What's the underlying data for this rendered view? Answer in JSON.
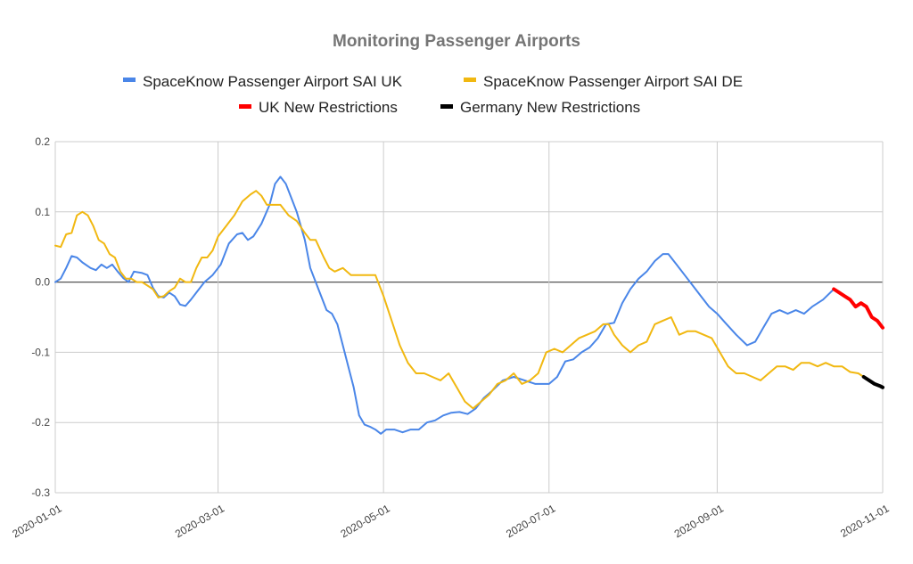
{
  "chart_data": {
    "type": "line",
    "title": "Monitoring Passenger Airports",
    "xlabel": "",
    "ylabel": "",
    "x_range": [
      "2020-01-01",
      "2020-11-01"
    ],
    "ylim": [
      -0.3,
      0.2
    ],
    "y_ticks": [
      "0.2",
      "0.1",
      "0.0",
      "-0.1",
      "-0.2",
      "-0.3"
    ],
    "x_ticks": [
      "2020-01-01",
      "2020-03-01",
      "2020-05-01",
      "2020-07-01",
      "2020-09-01",
      "2020-11-01"
    ],
    "grid": true,
    "legend_position": "top",
    "series": [
      {
        "name": "SpaceKnow Passenger Airport SAI UK",
        "color": "#4a86e8",
        "points": [
          [
            "2020-01-01",
            0.0
          ],
          [
            "2020-01-03",
            0.005
          ],
          [
            "2020-01-05",
            0.02
          ],
          [
            "2020-01-07",
            0.037
          ],
          [
            "2020-01-09",
            0.035
          ],
          [
            "2020-01-11",
            0.028
          ],
          [
            "2020-01-14",
            0.02
          ],
          [
            "2020-01-16",
            0.017
          ],
          [
            "2020-01-18",
            0.025
          ],
          [
            "2020-01-20",
            0.02
          ],
          [
            "2020-01-22",
            0.025
          ],
          [
            "2020-01-24",
            0.015
          ],
          [
            "2020-01-26",
            0.006
          ],
          [
            "2020-01-28",
            0.0
          ],
          [
            "2020-01-30",
            0.015
          ],
          [
            "2020-02-02",
            0.013
          ],
          [
            "2020-02-04",
            0.01
          ],
          [
            "2020-02-06",
            -0.008
          ],
          [
            "2020-02-08",
            -0.02
          ],
          [
            "2020-02-10",
            -0.022
          ],
          [
            "2020-02-12",
            -0.015
          ],
          [
            "2020-02-14",
            -0.02
          ],
          [
            "2020-02-16",
            -0.032
          ],
          [
            "2020-02-18",
            -0.034
          ],
          [
            "2020-02-20",
            -0.025
          ],
          [
            "2020-02-22",
            -0.015
          ],
          [
            "2020-02-25",
            0.0
          ],
          [
            "2020-02-28",
            0.01
          ],
          [
            "2020-03-02",
            0.025
          ],
          [
            "2020-03-05",
            0.055
          ],
          [
            "2020-03-08",
            0.068
          ],
          [
            "2020-03-10",
            0.07
          ],
          [
            "2020-03-12",
            0.06
          ],
          [
            "2020-03-14",
            0.065
          ],
          [
            "2020-03-17",
            0.083
          ],
          [
            "2020-03-20",
            0.11
          ],
          [
            "2020-03-22",
            0.14
          ],
          [
            "2020-03-24",
            0.15
          ],
          [
            "2020-03-26",
            0.14
          ],
          [
            "2020-03-28",
            0.12
          ],
          [
            "2020-03-30",
            0.1
          ],
          [
            "2020-04-02",
            0.06
          ],
          [
            "2020-04-04",
            0.02
          ],
          [
            "2020-04-06",
            0.0
          ],
          [
            "2020-04-08",
            -0.02
          ],
          [
            "2020-04-10",
            -0.04
          ],
          [
            "2020-04-12",
            -0.045
          ],
          [
            "2020-04-14",
            -0.06
          ],
          [
            "2020-04-16",
            -0.09
          ],
          [
            "2020-04-18",
            -0.12
          ],
          [
            "2020-04-20",
            -0.15
          ],
          [
            "2020-04-22",
            -0.19
          ],
          [
            "2020-04-24",
            -0.203
          ],
          [
            "2020-04-26",
            -0.206
          ],
          [
            "2020-04-28",
            -0.21
          ],
          [
            "2020-04-30",
            -0.216
          ],
          [
            "2020-05-02",
            -0.21
          ],
          [
            "2020-05-05",
            -0.21
          ],
          [
            "2020-05-08",
            -0.214
          ],
          [
            "2020-05-11",
            -0.21
          ],
          [
            "2020-05-14",
            -0.21
          ],
          [
            "2020-05-17",
            -0.2
          ],
          [
            "2020-05-20",
            -0.197
          ],
          [
            "2020-05-23",
            -0.19
          ],
          [
            "2020-05-26",
            -0.186
          ],
          [
            "2020-05-29",
            -0.185
          ],
          [
            "2020-06-01",
            -0.188
          ],
          [
            "2020-06-04",
            -0.18
          ],
          [
            "2020-06-07",
            -0.165
          ],
          [
            "2020-06-10",
            -0.155
          ],
          [
            "2020-06-14",
            -0.14
          ],
          [
            "2020-06-18",
            -0.135
          ],
          [
            "2020-06-22",
            -0.14
          ],
          [
            "2020-06-26",
            -0.145
          ],
          [
            "2020-07-01",
            -0.145
          ],
          [
            "2020-07-04",
            -0.135
          ],
          [
            "2020-07-07",
            -0.113
          ],
          [
            "2020-07-10",
            -0.11
          ],
          [
            "2020-07-13",
            -0.1
          ],
          [
            "2020-07-16",
            -0.093
          ],
          [
            "2020-07-19",
            -0.08
          ],
          [
            "2020-07-22",
            -0.06
          ],
          [
            "2020-07-25",
            -0.058
          ],
          [
            "2020-07-28",
            -0.03
          ],
          [
            "2020-07-31",
            -0.01
          ],
          [
            "2020-08-03",
            0.005
          ],
          [
            "2020-08-06",
            0.015
          ],
          [
            "2020-08-09",
            0.03
          ],
          [
            "2020-08-12",
            0.04
          ],
          [
            "2020-08-14",
            0.04
          ],
          [
            "2020-08-17",
            0.025
          ],
          [
            "2020-08-20",
            0.01
          ],
          [
            "2020-08-23",
            -0.005
          ],
          [
            "2020-08-26",
            -0.02
          ],
          [
            "2020-08-29",
            -0.035
          ],
          [
            "2020-09-01",
            -0.045
          ],
          [
            "2020-09-04",
            -0.058
          ],
          [
            "2020-09-08",
            -0.075
          ],
          [
            "2020-09-12",
            -0.09
          ],
          [
            "2020-09-15",
            -0.085
          ],
          [
            "2020-09-18",
            -0.065
          ],
          [
            "2020-09-21",
            -0.045
          ],
          [
            "2020-09-24",
            -0.04
          ],
          [
            "2020-09-27",
            -0.045
          ],
          [
            "2020-09-30",
            -0.04
          ],
          [
            "2020-10-03",
            -0.045
          ],
          [
            "2020-10-06",
            -0.035
          ],
          [
            "2020-10-10",
            -0.025
          ],
          [
            "2020-10-14",
            -0.01
          ]
        ]
      },
      {
        "name": "SpaceKnow Passenger Airport SAI DE",
        "color": "#f1b811",
        "points": [
          [
            "2020-01-01",
            0.052
          ],
          [
            "2020-01-03",
            0.05
          ],
          [
            "2020-01-05",
            0.068
          ],
          [
            "2020-01-07",
            0.07
          ],
          [
            "2020-01-09",
            0.095
          ],
          [
            "2020-01-11",
            0.1
          ],
          [
            "2020-01-13",
            0.095
          ],
          [
            "2020-01-15",
            0.08
          ],
          [
            "2020-01-17",
            0.06
          ],
          [
            "2020-01-19",
            0.055
          ],
          [
            "2020-01-21",
            0.04
          ],
          [
            "2020-01-23",
            0.035
          ],
          [
            "2020-01-25",
            0.015
          ],
          [
            "2020-01-27",
            0.005
          ],
          [
            "2020-01-29",
            0.005
          ],
          [
            "2020-01-31",
            0.0
          ],
          [
            "2020-02-02",
            0.0
          ],
          [
            "2020-02-04",
            -0.005
          ],
          [
            "2020-02-06",
            -0.01
          ],
          [
            "2020-02-08",
            -0.022
          ],
          [
            "2020-02-10",
            -0.02
          ],
          [
            "2020-02-12",
            -0.013
          ],
          [
            "2020-02-14",
            -0.008
          ],
          [
            "2020-02-16",
            0.005
          ],
          [
            "2020-02-18",
            0.0
          ],
          [
            "2020-02-20",
            0.0
          ],
          [
            "2020-02-22",
            0.02
          ],
          [
            "2020-02-24",
            0.035
          ],
          [
            "2020-02-26",
            0.035
          ],
          [
            "2020-02-28",
            0.045
          ],
          [
            "2020-03-01",
            0.065
          ],
          [
            "2020-03-04",
            0.08
          ],
          [
            "2020-03-07",
            0.095
          ],
          [
            "2020-03-10",
            0.115
          ],
          [
            "2020-03-13",
            0.125
          ],
          [
            "2020-03-15",
            0.13
          ],
          [
            "2020-03-17",
            0.123
          ],
          [
            "2020-03-19",
            0.11
          ],
          [
            "2020-03-21",
            0.11
          ],
          [
            "2020-03-24",
            0.11
          ],
          [
            "2020-03-27",
            0.095
          ],
          [
            "2020-03-30",
            0.087
          ],
          [
            "2020-04-02",
            0.07
          ],
          [
            "2020-04-04",
            0.06
          ],
          [
            "2020-04-06",
            0.06
          ],
          [
            "2020-04-09",
            0.035
          ],
          [
            "2020-04-11",
            0.02
          ],
          [
            "2020-04-13",
            0.015
          ],
          [
            "2020-04-16",
            0.02
          ],
          [
            "2020-04-19",
            0.01
          ],
          [
            "2020-04-22",
            0.01
          ],
          [
            "2020-04-25",
            0.01
          ],
          [
            "2020-04-28",
            0.01
          ],
          [
            "2020-05-01",
            -0.02
          ],
          [
            "2020-05-04",
            -0.055
          ],
          [
            "2020-05-07",
            -0.09
          ],
          [
            "2020-05-10",
            -0.115
          ],
          [
            "2020-05-13",
            -0.13
          ],
          [
            "2020-05-16",
            -0.13
          ],
          [
            "2020-05-19",
            -0.135
          ],
          [
            "2020-05-22",
            -0.14
          ],
          [
            "2020-05-25",
            -0.13
          ],
          [
            "2020-05-28",
            -0.15
          ],
          [
            "2020-05-31",
            -0.17
          ],
          [
            "2020-06-03",
            -0.18
          ],
          [
            "2020-06-06",
            -0.17
          ],
          [
            "2020-06-09",
            -0.16
          ],
          [
            "2020-06-12",
            -0.145
          ],
          [
            "2020-06-15",
            -0.14
          ],
          [
            "2020-06-18",
            -0.13
          ],
          [
            "2020-06-21",
            -0.145
          ],
          [
            "2020-06-24",
            -0.14
          ],
          [
            "2020-06-27",
            -0.13
          ],
          [
            "2020-06-30",
            -0.1
          ],
          [
            "2020-07-03",
            -0.095
          ],
          [
            "2020-07-06",
            -0.1
          ],
          [
            "2020-07-09",
            -0.09
          ],
          [
            "2020-07-12",
            -0.08
          ],
          [
            "2020-07-15",
            -0.075
          ],
          [
            "2020-07-18",
            -0.07
          ],
          [
            "2020-07-21",
            -0.06
          ],
          [
            "2020-07-23",
            -0.06
          ],
          [
            "2020-07-25",
            -0.075
          ],
          [
            "2020-07-28",
            -0.09
          ],
          [
            "2020-07-31",
            -0.1
          ],
          [
            "2020-08-03",
            -0.09
          ],
          [
            "2020-08-06",
            -0.085
          ],
          [
            "2020-08-09",
            -0.06
          ],
          [
            "2020-08-12",
            -0.055
          ],
          [
            "2020-08-15",
            -0.05
          ],
          [
            "2020-08-18",
            -0.075
          ],
          [
            "2020-08-21",
            -0.07
          ],
          [
            "2020-08-24",
            -0.07
          ],
          [
            "2020-08-27",
            -0.075
          ],
          [
            "2020-08-30",
            -0.08
          ],
          [
            "2020-09-02",
            -0.1
          ],
          [
            "2020-09-05",
            -0.12
          ],
          [
            "2020-09-08",
            -0.13
          ],
          [
            "2020-09-11",
            -0.13
          ],
          [
            "2020-09-14",
            -0.135
          ],
          [
            "2020-09-17",
            -0.14
          ],
          [
            "2020-09-20",
            -0.13
          ],
          [
            "2020-09-23",
            -0.12
          ],
          [
            "2020-09-26",
            -0.12
          ],
          [
            "2020-09-29",
            -0.125
          ],
          [
            "2020-10-02",
            -0.115
          ],
          [
            "2020-10-05",
            -0.115
          ],
          [
            "2020-10-08",
            -0.12
          ],
          [
            "2020-10-11",
            -0.115
          ],
          [
            "2020-10-14",
            -0.12
          ],
          [
            "2020-10-17",
            -0.12
          ],
          [
            "2020-10-20",
            -0.128
          ],
          [
            "2020-10-23",
            -0.13
          ],
          [
            "2020-10-25",
            -0.135
          ]
        ]
      },
      {
        "name": "UK New Restrictions",
        "color": "#ff0000",
        "points": [
          [
            "2020-10-14",
            -0.01
          ],
          [
            "2020-10-16",
            -0.015
          ],
          [
            "2020-10-18",
            -0.02
          ],
          [
            "2020-10-20",
            -0.025
          ],
          [
            "2020-10-22",
            -0.035
          ],
          [
            "2020-10-24",
            -0.03
          ],
          [
            "2020-10-26",
            -0.035
          ],
          [
            "2020-10-28",
            -0.05
          ],
          [
            "2020-10-30",
            -0.055
          ],
          [
            "2020-11-01",
            -0.065
          ]
        ]
      },
      {
        "name": "Germany New Restrictions",
        "color": "#000000",
        "points": [
          [
            "2020-10-25",
            -0.135
          ],
          [
            "2020-10-27",
            -0.14
          ],
          [
            "2020-10-29",
            -0.145
          ],
          [
            "2020-10-31",
            -0.148
          ],
          [
            "2020-11-01",
            -0.15
          ]
        ]
      }
    ]
  }
}
